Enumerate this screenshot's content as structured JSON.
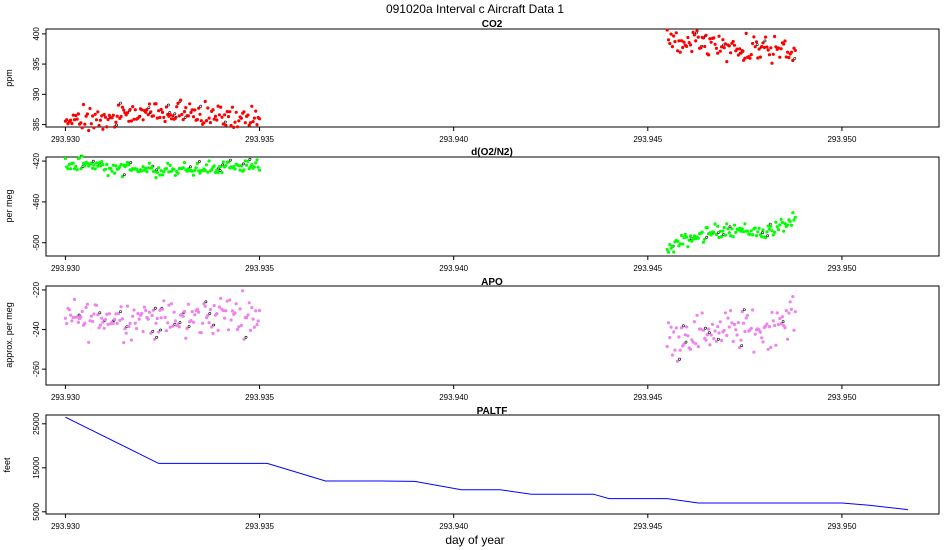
{
  "title": "091020a   Interval c Aircraft Data 1",
  "xlabel": "day of year",
  "chart_data": [
    {
      "type": "scatter",
      "title": "CO2",
      "ylabel": "ppm",
      "xlim": [
        293.9295,
        293.9525
      ],
      "ylim": [
        384.6,
        400.8
      ],
      "x_ticks": [
        "293.930",
        "293.935",
        "293.940",
        "293.945",
        "293.950"
      ],
      "y_ticks": [
        "385",
        "390",
        "395",
        "400"
      ],
      "series": [
        {
          "color": "#ff0000",
          "segments": [
            {
              "x": [
                293.93,
                293.931,
                293.932,
                293.9325,
                293.933,
                293.934,
                293.935
              ],
              "y": [
                386.0,
                385.9,
                386.4,
                387.2,
                386.6,
                386.6,
                386.4
              ]
            },
            {
              "x": [
                293.9455,
                293.946,
                293.947,
                293.948,
                293.9488
              ],
              "y": [
                399.5,
                398.0,
                397.8,
                397.3,
                397.4
              ]
            }
          ]
        }
      ]
    },
    {
      "type": "scatter",
      "title": "d(O2/N2)",
      "ylabel": "per meg",
      "xlim": [
        293.9295,
        293.9525
      ],
      "ylim": [
        -513,
        -416
      ],
      "x_ticks": [
        "293.930",
        "293.935",
        "293.940",
        "293.945",
        "293.950"
      ],
      "y_ticks": [
        "-420",
        "-460",
        "-500"
      ],
      "series": [
        {
          "color": "#00ff00",
          "segments": [
            {
              "x": [
                293.93,
                293.931,
                293.932,
                293.933,
                293.934,
                293.935
              ],
              "y": [
                -423,
                -426,
                -429,
                -429,
                -427,
                -423
              ]
            },
            {
              "x": [
                293.9455,
                293.946,
                293.947,
                293.948,
                293.9488
              ],
              "y": [
                -508,
                -497,
                -486,
                -490,
                -478
              ]
            }
          ]
        }
      ]
    },
    {
      "type": "scatter",
      "title": "APO",
      "ylabel": "approx. per meg",
      "xlim": [
        293.9295,
        293.9525
      ],
      "ylim": [
        -268,
        -218
      ],
      "x_ticks": [
        "293.930",
        "293.935",
        "293.940",
        "293.945",
        "293.950"
      ],
      "y_ticks": [
        "-220",
        "-240",
        "-260"
      ],
      "series": [
        {
          "color": "#ee82ee",
          "segments": [
            {
              "x": [
                293.93,
                293.931,
                293.932,
                293.933,
                293.934,
                293.935
              ],
              "y": [
                -235,
                -234,
                -234,
                -236,
                -232,
                -232
              ]
            },
            {
              "x": [
                293.9455,
                293.946,
                293.947,
                293.948,
                293.9488
              ],
              "y": [
                -246,
                -242,
                -240,
                -240,
                -232
              ]
            }
          ]
        }
      ]
    },
    {
      "type": "line",
      "title": "PALTF",
      "ylabel": "feet",
      "xlim": [
        293.9295,
        293.9525
      ],
      "ylim": [
        4500,
        27000
      ],
      "x_ticks": [
        "293.930",
        "293.935",
        "293.940",
        "293.945",
        "293.950"
      ],
      "y_ticks": [
        "5000",
        "15000",
        "25000"
      ],
      "series": [
        {
          "color": "#0000ff",
          "x": [
            293.93,
            293.9324,
            293.9352,
            293.9367,
            293.938,
            293.939,
            293.9402,
            293.9412,
            293.942,
            293.943,
            293.9436,
            293.944,
            293.945,
            293.9455,
            293.9463,
            293.947,
            293.95,
            293.9507,
            293.9517
          ],
          "y": [
            26500,
            16000,
            16000,
            12000,
            12000,
            11900,
            10000,
            10000,
            9000,
            9000,
            9000,
            8000,
            8000,
            8000,
            7000,
            7000,
            7000,
            6500,
            5500
          ]
        }
      ]
    }
  ]
}
